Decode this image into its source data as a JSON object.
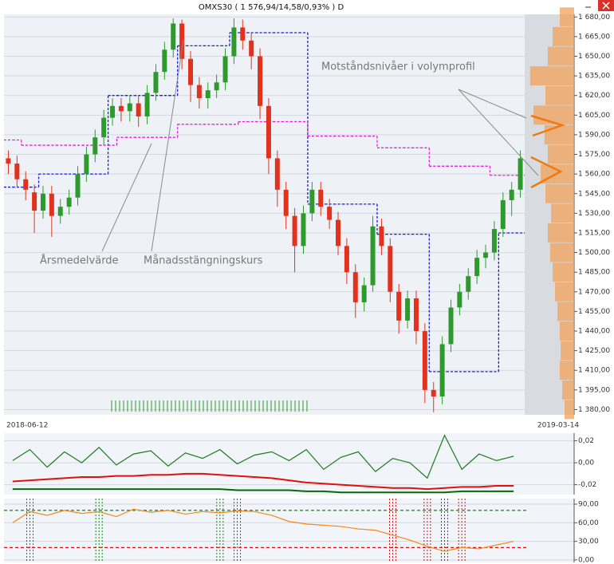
{
  "chart_data": [
    {
      "type": "candlestick",
      "title": "OMXS30 ( 1 576,94/14,58/0,93% )  D",
      "annotations": [
        "Motståndsnivåer i volymprofil",
        "Årsmedelvärde",
        "Månadsstängningskurs"
      ],
      "categories": [
        "2018-06-12",
        null,
        null,
        null,
        null,
        null,
        null,
        null,
        null,
        null,
        null,
        null,
        null,
        null,
        null,
        null,
        null,
        null,
        null,
        null,
        null,
        null,
        null,
        null,
        null,
        null,
        null,
        null,
        null,
        null,
        null,
        null,
        null,
        null,
        null,
        null,
        null,
        null,
        null,
        null,
        null,
        null,
        null,
        null,
        null,
        null,
        null,
        null,
        null,
        null,
        null,
        null,
        null,
        null,
        null,
        null,
        null,
        null,
        null,
        "2019-03-14"
      ],
      "open": [
        1572,
        1568,
        1556,
        1546,
        1532,
        1545,
        1528,
        1535,
        1542,
        1560,
        1575,
        1588,
        1603,
        1612,
        1608,
        1614,
        1604,
        1622,
        1638,
        1655,
        1675,
        1648,
        1628,
        1618,
        1624,
        1630,
        1650,
        1672,
        1662,
        1650,
        1612,
        1572,
        1548,
        1528,
        1505,
        1530,
        1548,
        1535,
        1525,
        1505,
        1485,
        1462,
        1475,
        1520,
        1505,
        1470,
        1448,
        1465,
        1440,
        1395,
        1390,
        1430,
        1458,
        1470,
        1482,
        1496,
        1500,
        1518,
        1540,
        1548
      ],
      "high": [
        1578,
        1574,
        1562,
        1552,
        1551,
        1551,
        1541,
        1548,
        1566,
        1581,
        1594,
        1609,
        1618,
        1618,
        1620,
        1620,
        1628,
        1644,
        1661,
        1679,
        1678,
        1654,
        1634,
        1630,
        1636,
        1656,
        1679,
        1678,
        1668,
        1656,
        1618,
        1578,
        1554,
        1534,
        1536,
        1554,
        1554,
        1541,
        1531,
        1511,
        1491,
        1481,
        1528,
        1526,
        1511,
        1476,
        1471,
        1471,
        1446,
        1401,
        1436,
        1464,
        1476,
        1488,
        1502,
        1506,
        1524,
        1546,
        1554,
        1578
      ],
      "low": [
        1560,
        1550,
        1540,
        1515,
        1526,
        1512,
        1522,
        1529,
        1536,
        1554,
        1569,
        1582,
        1597,
        1600,
        1600,
        1596,
        1598,
        1616,
        1632,
        1649,
        1640,
        1615,
        1610,
        1610,
        1618,
        1624,
        1644,
        1655,
        1640,
        1602,
        1560,
        1535,
        1518,
        1485,
        1499,
        1524,
        1528,
        1518,
        1498,
        1476,
        1450,
        1455,
        1470,
        1498,
        1462,
        1438,
        1442,
        1430,
        1385,
        1378,
        1384,
        1424,
        1452,
        1464,
        1476,
        1488,
        1494,
        1512,
        1528,
        1542
      ],
      "close": [
        1568,
        1556,
        1548,
        1532,
        1545,
        1528,
        1535,
        1542,
        1560,
        1575,
        1588,
        1603,
        1612,
        1608,
        1614,
        1604,
        1622,
        1638,
        1655,
        1675,
        1648,
        1628,
        1618,
        1624,
        1630,
        1650,
        1672,
        1662,
        1650,
        1612,
        1572,
        1548,
        1528,
        1505,
        1530,
        1548,
        1535,
        1525,
        1505,
        1485,
        1462,
        1475,
        1520,
        1505,
        1470,
        1448,
        1465,
        1440,
        1395,
        1390,
        1430,
        1458,
        1470,
        1482,
        1496,
        1500,
        1518,
        1540,
        1548,
        1572
      ],
      "up_color": "#2e9a2e",
      "down_color": "#e2321e",
      "series": [
        {
          "color": "#1a1adc",
          "values": [
            1550,
            1550,
            1550,
            1550,
            1560,
            1560,
            1560,
            1560,
            1560,
            1560,
            1560,
            1560,
            1620,
            1620,
            1620,
            1620,
            1620,
            1620,
            1620,
            1620,
            1658,
            1658,
            1658,
            1658,
            1658,
            1658,
            1668,
            1668,
            1668,
            1668,
            1668,
            1668,
            1668,
            1668,
            1668,
            1537,
            1537,
            1537,
            1537,
            1537,
            1537,
            1537,
            1537,
            1514,
            1514,
            1514,
            1514,
            1514,
            1514,
            1409,
            1409,
            1409,
            1409,
            1409,
            1409,
            1409,
            1409,
            1515,
            1515,
            1515
          ]
        },
        {
          "color": "#e020e0",
          "values": [
            1586,
            1586,
            1582,
            1582,
            1582,
            1582,
            1582,
            1582,
            1582,
            1582,
            1582,
            1582,
            1582,
            1588,
            1588,
            1588,
            1588,
            1588,
            1588,
            1588,
            1598,
            1598,
            1598,
            1598,
            1598,
            1598,
            1598,
            1600,
            1600,
            1600,
            1600,
            1600,
            1600,
            1600,
            1600,
            1589,
            1589,
            1589,
            1589,
            1589,
            1589,
            1589,
            1589,
            1580,
            1580,
            1580,
            1580,
            1580,
            1580,
            1566,
            1566,
            1566,
            1566,
            1566,
            1566,
            1566,
            1559,
            1559,
            1559,
            1559
          ]
        }
      ],
      "profile_levels": [
        1380,
        1395,
        1410,
        1425,
        1440,
        1455,
        1470,
        1485,
        1500,
        1515,
        1530,
        1545,
        1560,
        1575,
        1590,
        1605,
        1620,
        1635,
        1650,
        1665,
        1680
      ],
      "profile_volumes": [
        20,
        25,
        30,
        28,
        30,
        35,
        40,
        45,
        50,
        55,
        48,
        60,
        70,
        55,
        62,
        85,
        60,
        92,
        55,
        45,
        30
      ],
      "profile_xlim": [
        0,
        100
      ],
      "profile_color": "#f2a25a",
      "ylim": [
        1376,
        1682
      ],
      "yticks": [
        {
          "value": 1380,
          "label": "1 380,00"
        },
        {
          "value": 1395,
          "label": "1 395,00"
        },
        {
          "value": 1410,
          "label": "1 410,00"
        },
        {
          "value": 1425,
          "label": "1 425,00"
        },
        {
          "value": 1440,
          "label": "1 440,00"
        },
        {
          "value": 1455,
          "label": "1 455,00"
        },
        {
          "value": 1470,
          "label": "1 470,00"
        },
        {
          "value": 1485,
          "label": "1 485,00"
        },
        {
          "value": 1500,
          "label": "1 500,00"
        },
        {
          "value": 1515,
          "label": "1 515,00"
        },
        {
          "value": 1530,
          "label": "1 530,00"
        },
        {
          "value": 1545,
          "label": "1 545,00"
        },
        {
          "value": 1560,
          "label": "1 560,00"
        },
        {
          "value": 1575,
          "label": "1 575,00"
        },
        {
          "value": 1590,
          "label": "1 590,00"
        },
        {
          "value": 1605,
          "label": "1 605,00"
        },
        {
          "value": 1620,
          "label": "1 620,00"
        },
        {
          "value": 1635,
          "label": "1 635,00"
        },
        {
          "value": 1650,
          "label": "1 650,00"
        },
        {
          "value": 1665,
          "label": "1 665,00"
        },
        {
          "value": 1680,
          "label": "1 680,00"
        }
      ],
      "grid": true
    },
    {
      "type": "line",
      "series": [
        {
          "color": "#1f7a1f",
          "values": [
            0.002,
            0.012,
            -0.004,
            0.01,
            0.0,
            0.014,
            -0.002,
            0.008,
            0.011,
            -0.003,
            0.009,
            0.004,
            0.012,
            -0.001,
            0.007,
            0.01,
            0.002,
            0.012,
            -0.006,
            0.005,
            0.01,
            -0.008,
            0.004,
            0.0,
            -0.014,
            0.025,
            -0.006,
            0.008,
            0.002,
            0.006
          ]
        },
        {
          "color": "#e01010",
          "values": [
            -0.017,
            -0.016,
            -0.015,
            -0.014,
            -0.013,
            -0.013,
            -0.012,
            -0.012,
            -0.011,
            -0.011,
            -0.01,
            -0.01,
            -0.011,
            -0.012,
            -0.013,
            -0.014,
            -0.016,
            -0.018,
            -0.019,
            -0.02,
            -0.021,
            -0.022,
            -0.023,
            -0.023,
            -0.024,
            -0.023,
            -0.022,
            -0.022,
            -0.021,
            -0.021
          ]
        },
        {
          "color": "#0a6a0a",
          "values": [
            -0.024,
            -0.024,
            -0.024,
            -0.024,
            -0.024,
            -0.024,
            -0.024,
            -0.024,
            -0.024,
            -0.024,
            -0.024,
            -0.024,
            -0.024,
            -0.025,
            -0.025,
            -0.025,
            -0.025,
            -0.026,
            -0.026,
            -0.027,
            -0.027,
            -0.027,
            -0.027,
            -0.027,
            -0.027,
            -0.027,
            -0.026,
            -0.026,
            -0.026,
            -0.026
          ]
        }
      ],
      "ylim": [
        -0.029,
        0.027
      ],
      "yticks": [
        {
          "value": 0.02,
          "label": "0,02"
        },
        {
          "value": 0,
          "label": "0,00"
        },
        {
          "value": -0.02,
          "label": "-0,02"
        }
      ],
      "grid": true
    },
    {
      "type": "line",
      "series": [
        {
          "color": "#f08a1a",
          "values": [
            60,
            78,
            72,
            80,
            75,
            78,
            70,
            82,
            77,
            80,
            74,
            78,
            76,
            79,
            78,
            72,
            62,
            58,
            56,
            54,
            50,
            48,
            40,
            32,
            22,
            14,
            20,
            18,
            24,
            30
          ]
        }
      ],
      "reference_lines": [
        {
          "value": 80,
          "color": "#108a10"
        },
        {
          "value": 20,
          "color": "#e01010"
        }
      ],
      "buy_signals": [
        1,
        5,
        12,
        13
      ],
      "sell_signals": [
        22,
        24,
        25,
        26
      ],
      "ylim": [
        -4,
        99
      ],
      "yticks": [
        {
          "value": 90,
          "label": "90,00"
        },
        {
          "value": 60,
          "label": "60,00"
        },
        {
          "value": 30,
          "label": "30,00"
        },
        {
          "value": 0,
          "label": "0,00"
        }
      ],
      "grid": true
    }
  ]
}
